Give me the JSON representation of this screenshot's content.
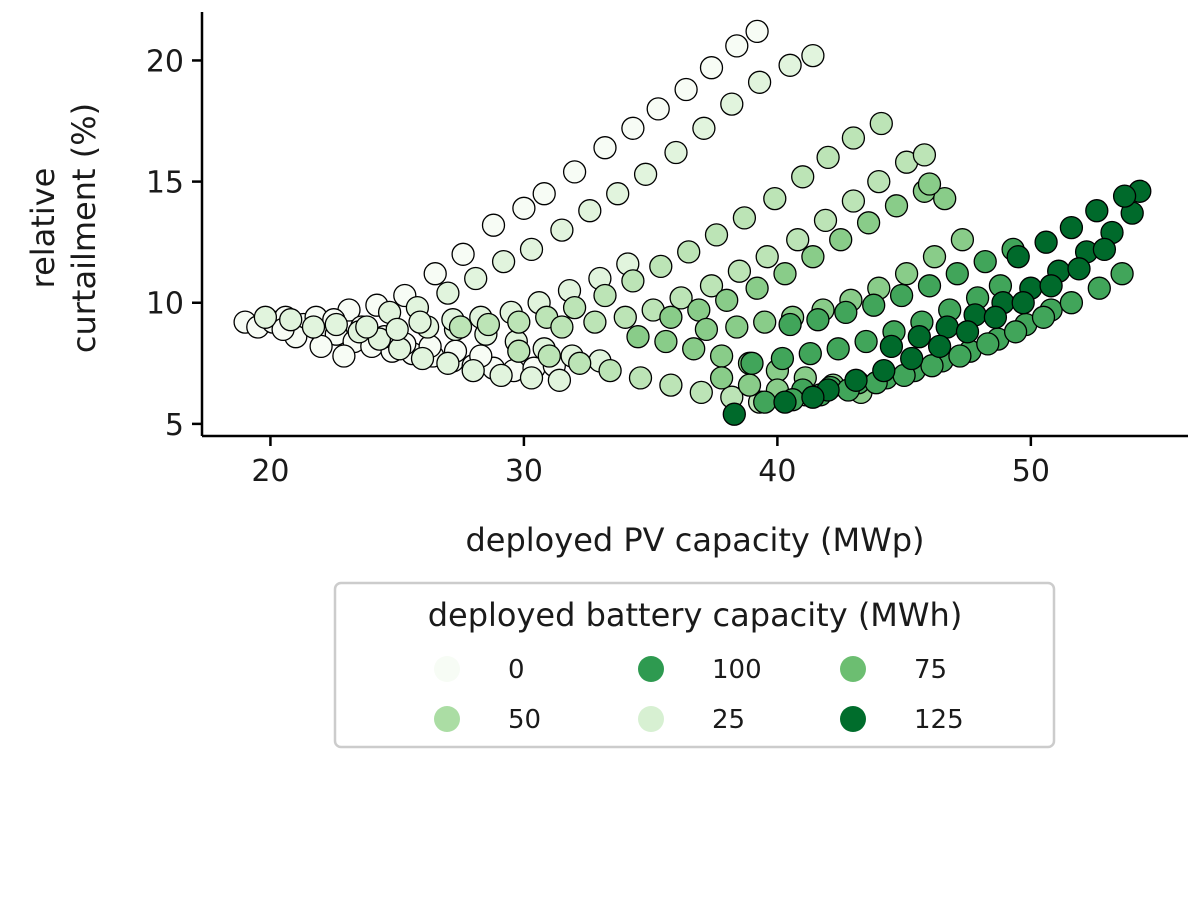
{
  "chart_data": {
    "type": "scatter",
    "xlabel": "deployed PV capacity (MWp)",
    "ylabel_lines": [
      "relative",
      "curtailment (%)"
    ],
    "xlim": [
      17.3,
      56.2
    ],
    "ylim": [
      4.5,
      22.0
    ],
    "x_ticks": [
      20,
      30,
      40,
      50
    ],
    "y_ticks": [
      5,
      10,
      15,
      20
    ],
    "grid": false,
    "legend": {
      "title": "deployed battery capacity (MWh)",
      "placement": "below-chart",
      "entries": [
        {
          "label": "0",
          "color": "#f7fcf5"
        },
        {
          "label": "50",
          "color": "#abdda4"
        },
        {
          "label": "100",
          "color": "#2e9a50"
        },
        {
          "label": "25",
          "color": "#d7f0d2"
        },
        {
          "label": "75",
          "color": "#6cbe71"
        },
        {
          "label": "125",
          "color": "#006d2c"
        }
      ]
    },
    "marker_edge_color": "#000000",
    "color_scale": {
      "min": 0,
      "max": 130,
      "stops": [
        "#f7fcf5",
        "#d7f0d2",
        "#abdda4",
        "#6cbe71",
        "#2e9a50",
        "#006d2c",
        "#00441b"
      ]
    },
    "series": [
      {
        "battery": 0,
        "points": [
          [
            19.0,
            9.2
          ],
          [
            19.5,
            9.0
          ],
          [
            20.1,
            9.2
          ],
          [
            20.6,
            9.4
          ],
          [
            21.3,
            9.1
          ],
          [
            21.9,
            8.9
          ],
          [
            22.6,
            8.7
          ],
          [
            23.3,
            8.4
          ],
          [
            24.0,
            8.2
          ],
          [
            24.8,
            8.0
          ],
          [
            25.6,
            7.9
          ],
          [
            26.4,
            7.8
          ],
          [
            27.2,
            7.6
          ],
          [
            28.0,
            7.4
          ],
          [
            28.8,
            7.3
          ],
          [
            29.6,
            7.2
          ],
          [
            30.4,
            7.3
          ],
          [
            31.2,
            7.4
          ],
          [
            23.1,
            9.7
          ],
          [
            24.2,
            9.9
          ],
          [
            25.3,
            10.3
          ],
          [
            26.5,
            11.2
          ],
          [
            27.6,
            12.0
          ],
          [
            28.8,
            13.2
          ],
          [
            30.0,
            13.9
          ],
          [
            30.8,
            14.5
          ],
          [
            32.0,
            15.4
          ],
          [
            33.2,
            16.4
          ],
          [
            34.3,
            17.2
          ],
          [
            35.3,
            18.0
          ],
          [
            36.4,
            18.8
          ],
          [
            37.4,
            19.7
          ],
          [
            38.4,
            20.6
          ],
          [
            39.2,
            21.2
          ],
          [
            21.0,
            8.6
          ],
          [
            22.0,
            8.2
          ],
          [
            22.9,
            7.8
          ],
          [
            20.5,
            8.9
          ],
          [
            21.8,
            9.4
          ],
          [
            22.5,
            9.3
          ],
          [
            23.6,
            9.0
          ],
          [
            24.5,
            8.6
          ],
          [
            25.3,
            8.3
          ],
          [
            26.3,
            8.2
          ],
          [
            27.3,
            8.0
          ],
          [
            28.3,
            7.8
          ]
        ]
      },
      {
        "battery": 15,
        "points": [
          [
            19.8,
            9.4
          ],
          [
            20.8,
            9.3
          ],
          [
            21.7,
            9.0
          ],
          [
            22.6,
            9.1
          ],
          [
            23.5,
            8.8
          ],
          [
            24.3,
            8.5
          ],
          [
            25.1,
            8.1
          ],
          [
            26.0,
            7.7
          ],
          [
            27.0,
            7.5
          ],
          [
            28.0,
            7.2
          ],
          [
            29.1,
            7.0
          ],
          [
            30.3,
            6.9
          ],
          [
            31.4,
            6.8
          ],
          [
            24.7,
            9.6
          ],
          [
            25.8,
            9.8
          ],
          [
            27.0,
            10.4
          ],
          [
            28.1,
            11.0
          ],
          [
            29.2,
            11.7
          ],
          [
            30.3,
            12.2
          ],
          [
            31.5,
            13.0
          ],
          [
            32.6,
            13.8
          ],
          [
            33.7,
            14.5
          ],
          [
            34.8,
            15.3
          ],
          [
            36.0,
            16.2
          ],
          [
            37.1,
            17.2
          ],
          [
            38.2,
            18.2
          ],
          [
            39.3,
            19.1
          ],
          [
            40.5,
            19.8
          ],
          [
            41.4,
            20.2
          ],
          [
            23.8,
            9.0
          ],
          [
            25.0,
            8.9
          ],
          [
            26.2,
            9.0
          ],
          [
            27.3,
            8.9
          ],
          [
            28.5,
            8.7
          ],
          [
            29.7,
            8.4
          ],
          [
            30.8,
            8.1
          ],
          [
            31.9,
            7.8
          ],
          [
            33.0,
            7.6
          ],
          [
            25.9,
            9.2
          ],
          [
            27.2,
            9.3
          ],
          [
            28.3,
            9.4
          ],
          [
            29.5,
            9.6
          ],
          [
            30.6,
            10.0
          ],
          [
            31.8,
            10.5
          ],
          [
            33.0,
            11.0
          ],
          [
            34.1,
            11.6
          ]
        ]
      },
      {
        "battery": 35,
        "points": [
          [
            27.5,
            9.0
          ],
          [
            28.6,
            9.1
          ],
          [
            29.8,
            9.2
          ],
          [
            30.9,
            9.4
          ],
          [
            32.0,
            9.8
          ],
          [
            33.2,
            10.3
          ],
          [
            34.3,
            10.9
          ],
          [
            35.4,
            11.5
          ],
          [
            36.5,
            12.1
          ],
          [
            37.6,
            12.8
          ],
          [
            38.7,
            13.5
          ],
          [
            39.9,
            14.3
          ],
          [
            41.0,
            15.2
          ],
          [
            42.0,
            16.0
          ],
          [
            43.0,
            16.8
          ],
          [
            44.1,
            17.4
          ],
          [
            29.8,
            8.0
          ],
          [
            31.0,
            7.8
          ],
          [
            32.2,
            7.5
          ],
          [
            33.4,
            7.2
          ],
          [
            34.6,
            6.9
          ],
          [
            35.8,
            6.6
          ],
          [
            37.0,
            6.3
          ],
          [
            38.2,
            6.1
          ],
          [
            39.3,
            5.9
          ],
          [
            31.5,
            9.0
          ],
          [
            32.8,
            9.2
          ],
          [
            34.0,
            9.4
          ],
          [
            35.1,
            9.7
          ],
          [
            36.2,
            10.2
          ],
          [
            37.4,
            10.7
          ],
          [
            38.5,
            11.3
          ],
          [
            39.6,
            11.9
          ],
          [
            40.8,
            12.6
          ],
          [
            41.9,
            13.4
          ],
          [
            43.0,
            14.2
          ],
          [
            44.0,
            15.0
          ],
          [
            45.1,
            15.8
          ],
          [
            45.8,
            16.1
          ]
        ]
      },
      {
        "battery": 55,
        "points": [
          [
            34.5,
            8.6
          ],
          [
            35.6,
            8.4
          ],
          [
            36.7,
            8.1
          ],
          [
            37.8,
            7.8
          ],
          [
            38.9,
            7.5
          ],
          [
            40.0,
            7.2
          ],
          [
            41.1,
            6.9
          ],
          [
            42.2,
            6.6
          ],
          [
            43.3,
            6.3
          ],
          [
            35.8,
            9.4
          ],
          [
            36.9,
            9.7
          ],
          [
            38.0,
            10.1
          ],
          [
            39.2,
            10.6
          ],
          [
            40.3,
            11.2
          ],
          [
            41.4,
            11.9
          ],
          [
            42.5,
            12.6
          ],
          [
            43.6,
            13.3
          ],
          [
            44.7,
            14.0
          ],
          [
            45.8,
            14.6
          ],
          [
            46.6,
            14.3
          ],
          [
            46.0,
            14.9
          ],
          [
            37.2,
            8.9
          ],
          [
            38.4,
            9.0
          ],
          [
            39.5,
            9.2
          ],
          [
            40.6,
            9.4
          ],
          [
            41.8,
            9.7
          ],
          [
            42.9,
            10.1
          ],
          [
            44.0,
            10.6
          ],
          [
            45.1,
            11.2
          ],
          [
            46.2,
            11.9
          ],
          [
            47.3,
            12.6
          ],
          [
            37.8,
            6.9
          ],
          [
            38.9,
            6.6
          ],
          [
            40.0,
            6.4
          ],
          [
            41.1,
            6.2
          ]
        ]
      },
      {
        "battery": 80,
        "points": [
          [
            39.0,
            7.5
          ],
          [
            40.2,
            7.7
          ],
          [
            41.3,
            7.9
          ],
          [
            42.4,
            8.1
          ],
          [
            43.5,
            8.4
          ],
          [
            44.6,
            8.8
          ],
          [
            45.7,
            9.2
          ],
          [
            46.8,
            9.7
          ],
          [
            47.9,
            10.2
          ],
          [
            48.8,
            10.7
          ],
          [
            41.0,
            6.4
          ],
          [
            42.1,
            6.5
          ],
          [
            43.2,
            6.7
          ],
          [
            44.3,
            6.9
          ],
          [
            45.4,
            7.2
          ],
          [
            46.5,
            7.6
          ],
          [
            47.6,
            8.0
          ],
          [
            48.7,
            8.5
          ],
          [
            49.8,
            9.1
          ],
          [
            50.8,
            9.7
          ],
          [
            39.5,
            5.9
          ],
          [
            40.6,
            6.0
          ],
          [
            41.7,
            6.2
          ],
          [
            42.8,
            6.4
          ],
          [
            43.9,
            6.7
          ],
          [
            45.0,
            7.0
          ],
          [
            46.1,
            7.4
          ],
          [
            47.2,
            7.8
          ],
          [
            48.3,
            8.3
          ],
          [
            49.4,
            8.8
          ],
          [
            50.5,
            9.4
          ],
          [
            51.6,
            10.0
          ],
          [
            52.7,
            10.6
          ],
          [
            53.6,
            11.2
          ],
          [
            40.5,
            9.1
          ],
          [
            41.6,
            9.3
          ],
          [
            42.7,
            9.6
          ],
          [
            43.8,
            9.9
          ],
          [
            44.9,
            10.3
          ],
          [
            46.0,
            10.7
          ],
          [
            47.1,
            11.2
          ],
          [
            48.2,
            11.7
          ],
          [
            49.3,
            12.2
          ]
        ]
      },
      {
        "battery": 110,
        "points": [
          [
            44.5,
            8.2
          ],
          [
            45.6,
            8.6
          ],
          [
            46.7,
            9.0
          ],
          [
            47.8,
            9.5
          ],
          [
            48.9,
            10.0
          ],
          [
            50.0,
            10.6
          ],
          [
            51.1,
            11.3
          ],
          [
            52.2,
            12.1
          ],
          [
            53.2,
            12.9
          ],
          [
            54.0,
            13.7
          ],
          [
            54.3,
            14.6
          ],
          [
            49.5,
            11.9
          ],
          [
            50.6,
            12.5
          ],
          [
            51.6,
            13.1
          ],
          [
            52.6,
            13.8
          ],
          [
            53.7,
            14.4
          ],
          [
            42.0,
            6.4
          ],
          [
            43.1,
            6.8
          ],
          [
            44.2,
            7.2
          ],
          [
            45.3,
            7.7
          ],
          [
            46.4,
            8.2
          ],
          [
            47.5,
            8.8
          ],
          [
            48.6,
            9.4
          ],
          [
            49.7,
            10.0
          ],
          [
            50.8,
            10.7
          ],
          [
            51.9,
            11.4
          ],
          [
            52.9,
            12.2
          ],
          [
            38.3,
            5.4
          ],
          [
            40.3,
            5.9
          ],
          [
            41.4,
            6.1
          ]
        ]
      }
    ]
  }
}
